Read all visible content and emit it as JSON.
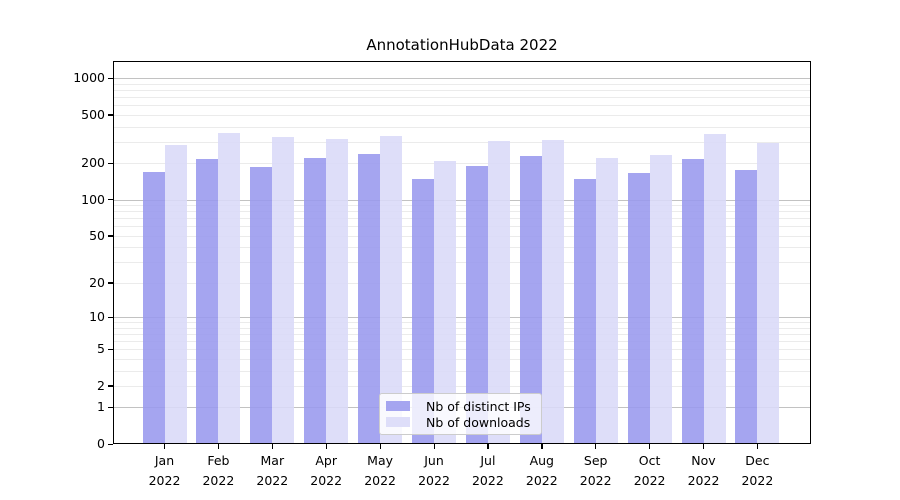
{
  "chart_data": {
    "type": "bar",
    "title": "AnnotationHubData 2022",
    "x_months": [
      "Jan",
      "Feb",
      "Mar",
      "Apr",
      "May",
      "Jun",
      "Jul",
      "Aug",
      "Sep",
      "Oct",
      "Nov",
      "Dec"
    ],
    "x_year": "2022",
    "xlabel": "",
    "ylabel": "",
    "yscale": "log1p",
    "ylim": [
      0,
      1386
    ],
    "ytick_labels": [
      0,
      1,
      2,
      5,
      10,
      20,
      50,
      100,
      200,
      500,
      1000
    ],
    "grid": "on",
    "legend_position": "lower center",
    "series": [
      {
        "name": "Nb of distinct IPs",
        "color": "#9999ee",
        "values": [
          170,
          215,
          185,
          222,
          238,
          148,
          190,
          231,
          148,
          167,
          218,
          176
        ]
      },
      {
        "name": "Nb of downloads",
        "color": "#d9d9f8",
        "values": [
          285,
          357,
          331,
          319,
          338,
          210,
          307,
          311,
          220,
          235,
          347,
          296
        ]
      }
    ],
    "grid_colors": {
      "major": "#c2c2c2",
      "minor": "#ebebeb"
    },
    "major_grid_values": [
      1,
      10,
      100,
      1000
    ]
  }
}
